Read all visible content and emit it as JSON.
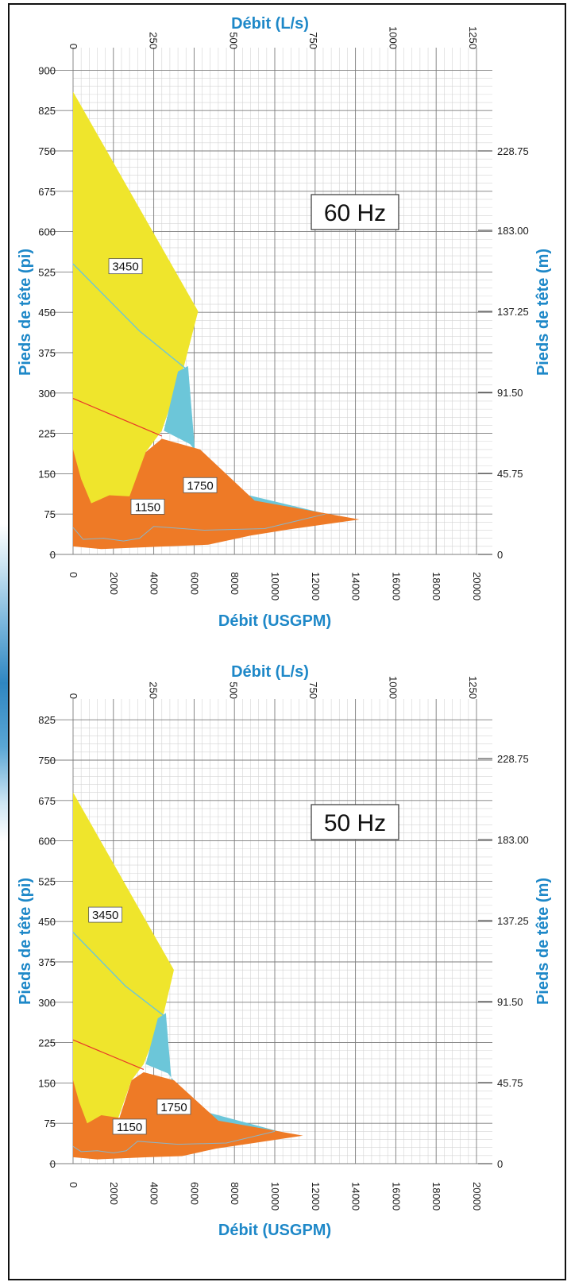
{
  "colors": {
    "yellow": "#efe52c",
    "orange": "#ee7a26",
    "cyan": "#6cc6d9",
    "axis_title": "#1e88c8",
    "red_line": "#e8392a"
  },
  "chart_data": [
    {
      "type": "area",
      "title": "60 Hz",
      "xlabel": "Débit (USGPM)",
      "xlabel_top": "Débit (L/s)",
      "ylabel": "Pieds de tête (pi)",
      "ylabel_right": "Pieds de tête (m)",
      "xlim": [
        0,
        20000
      ],
      "ylim": [
        0,
        900
      ],
      "x_ticks": [
        "0",
        "2000",
        "4000",
        "6000",
        "8000",
        "10000",
        "12000",
        "14000",
        "16000",
        "18000",
        "20000"
      ],
      "x_top_ticks": [
        "0",
        "250",
        "500",
        "750",
        "1000",
        "1250"
      ],
      "y_ticks": [
        "0",
        "75",
        "150",
        "225",
        "300",
        "375",
        "450",
        "525",
        "600",
        "675",
        "750",
        "825",
        "900"
      ],
      "y_right_ticks": [
        "0",
        "45.75",
        "91.50",
        "137.25",
        "183.00",
        "228.75"
      ],
      "speed_labels": [
        {
          "text": "3450",
          "x": 2600,
          "y": 535
        },
        {
          "text": "1750",
          "x": 6300,
          "y": 128
        },
        {
          "text": "1150",
          "x": 3700,
          "y": 88
        }
      ],
      "series": [
        {
          "name": "3450",
          "color": "yellow",
          "polygon": [
            [
              0,
              860
            ],
            [
              6200,
              452
            ],
            [
              5500,
              350
            ],
            [
              4400,
              230
            ],
            [
              3600,
              190
            ],
            [
              2600,
              75
            ],
            [
              1000,
              75
            ],
            [
              0,
              120
            ]
          ]
        },
        {
          "name": "1750",
          "color": "cyan",
          "polygon": [
            [
              4500,
              230
            ],
            [
              5800,
              205
            ],
            [
              7600,
              120
            ],
            [
              12600,
              75
            ],
            [
              8000,
              62
            ],
            [
              6200,
              120
            ],
            [
              5700,
              350
            ],
            [
              5200,
              340
            ]
          ]
        },
        {
          "name": "1150",
          "color": "orange",
          "polygon": [
            [
              0,
              195
            ],
            [
              0,
              15
            ],
            [
              1400,
              10
            ],
            [
              4600,
              15
            ],
            [
              6700,
              18
            ],
            [
              8800,
              35
            ],
            [
              10800,
              47
            ],
            [
              14200,
              65
            ],
            [
              9000,
              100
            ],
            [
              6300,
              195
            ],
            [
              4400,
              215
            ],
            [
              3600,
              190
            ],
            [
              2800,
              108
            ],
            [
              1800,
              110
            ],
            [
              900,
              95
            ],
            [
              400,
              140
            ]
          ]
        }
      ]
    },
    {
      "type": "area",
      "title": "50 Hz",
      "xlabel": "Débit (USGPM)",
      "xlabel_top": "Débit (L/s)",
      "ylabel": "Pieds de tête (pi)",
      "ylabel_right": "Pieds de tête (m)",
      "xlim": [
        0,
        20000
      ],
      "ylim": [
        0,
        825
      ],
      "x_ticks": [
        "0",
        "2000",
        "4000",
        "6000",
        "8000",
        "10000",
        "12000",
        "14000",
        "16000",
        "18000",
        "20000"
      ],
      "x_top_ticks": [
        "0",
        "250",
        "500",
        "750",
        "1000",
        "1250"
      ],
      "y_ticks": [
        "0",
        "75",
        "150",
        "225",
        "300",
        "375",
        "450",
        "525",
        "600",
        "675",
        "750",
        "825"
      ],
      "y_right_ticks": [
        "0",
        "45.75",
        "91.50",
        "137.25",
        "183.00",
        "228.75"
      ],
      "speed_labels": [
        {
          "text": "3450",
          "x": 1600,
          "y": 462
        },
        {
          "text": "1750",
          "x": 5000,
          "y": 105
        },
        {
          "text": "1150",
          "x": 2800,
          "y": 68
        }
      ],
      "series": [
        {
          "name": "3450",
          "color": "yellow",
          "polygon": [
            [
              0,
              690
            ],
            [
              5000,
              360
            ],
            [
              4500,
              280
            ],
            [
              3500,
              185
            ],
            [
              2900,
              155
            ],
            [
              2100,
              70
            ],
            [
              800,
              65
            ],
            [
              0,
              100
            ]
          ]
        },
        {
          "name": "1750",
          "color": "cyan",
          "polygon": [
            [
              3600,
              185
            ],
            [
              4700,
              168
            ],
            [
              6200,
              100
            ],
            [
              10200,
              60
            ],
            [
              6500,
              50
            ],
            [
              5000,
              100
            ],
            [
              4600,
              280
            ],
            [
              4200,
              270
            ]
          ]
        },
        {
          "name": "1150",
          "color": "orange",
          "polygon": [
            [
              0,
              155
            ],
            [
              0,
              12
            ],
            [
              1200,
              8
            ],
            [
              3700,
              12
            ],
            [
              5400,
              14
            ],
            [
              7100,
              28
            ],
            [
              8700,
              37
            ],
            [
              11400,
              52
            ],
            [
              7200,
              80
            ],
            [
              5000,
              155
            ],
            [
              3500,
              170
            ],
            [
              2900,
              155
            ],
            [
              2300,
              85
            ],
            [
              1400,
              90
            ],
            [
              700,
              75
            ],
            [
              300,
              115
            ]
          ]
        }
      ]
    }
  ]
}
